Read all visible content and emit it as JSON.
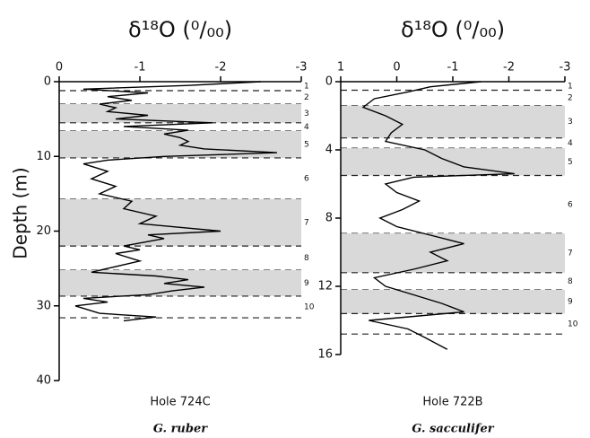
{
  "chart_data": [
    {
      "type": "line",
      "title": "δ¹⁸O (⁰/₀₀)",
      "ylabel": "Depth (m)",
      "subtitle": "Hole 724C",
      "caption": "G. ruber",
      "color": "#000000",
      "band_color": "#d9d9d9",
      "xlim": [
        0,
        -3
      ],
      "xticks": [
        0,
        -1,
        -2,
        -3
      ],
      "ylim": [
        0,
        40
      ],
      "yticks": [
        0,
        10,
        20,
        30,
        40
      ],
      "depth": [
        0,
        0.5,
        1,
        1.5,
        2,
        2.5,
        3,
        3.5,
        4,
        4.5,
        5,
        5.5,
        6,
        6.5,
        7,
        7.5,
        8,
        8.5,
        9,
        9.5,
        10,
        10.5,
        11,
        12,
        13,
        14,
        15,
        16,
        17,
        18,
        19,
        20,
        20.5,
        21,
        22,
        22.5,
        23,
        24,
        25,
        25.5,
        26,
        26.5,
        27,
        27.5,
        28,
        28.5,
        29,
        29.5,
        30,
        31,
        31.5,
        32
      ],
      "values": [
        -2.5,
        -1.6,
        -0.3,
        -1.1,
        -0.6,
        -0.9,
        -0.5,
        -0.7,
        -0.6,
        -1.1,
        -0.7,
        -1.9,
        -0.8,
        -1.6,
        -1.3,
        -1.5,
        -1.6,
        -1.5,
        -1.8,
        -2.7,
        -1.3,
        -0.6,
        -0.3,
        -0.6,
        -0.4,
        -0.7,
        -0.5,
        -0.9,
        -0.8,
        -1.2,
        -1.0,
        -2.0,
        -1.1,
        -1.3,
        -0.8,
        -1.0,
        -0.7,
        -1.0,
        -0.6,
        -0.4,
        -1.2,
        -1.6,
        -1.3,
        -1.8,
        -1.4,
        -1.1,
        -0.3,
        -0.6,
        -0.2,
        -0.5,
        -1.2,
        -0.8
      ],
      "zones": [
        {
          "label": "1",
          "top": 0,
          "bottom": 1.2,
          "shaded": false
        },
        {
          "label": "2",
          "top": 1.2,
          "bottom": 3,
          "shaded": false
        },
        {
          "label": "3",
          "top": 3,
          "bottom": 5.5,
          "shaded": true
        },
        {
          "label": "4",
          "top": 5.5,
          "bottom": 6.6,
          "shaded": false
        },
        {
          "label": "5",
          "top": 6.6,
          "bottom": 10.2,
          "shaded": true
        },
        {
          "label": "6",
          "top": 10.2,
          "bottom": 15.7,
          "shaded": false
        },
        {
          "label": "7",
          "top": 15.7,
          "bottom": 22,
          "shaded": true
        },
        {
          "label": "8",
          "top": 22,
          "bottom": 25.2,
          "shaded": false
        },
        {
          "label": "9",
          "top": 25.2,
          "bottom": 28.7,
          "shaded": true
        },
        {
          "label": "10",
          "top": 28.7,
          "bottom": 31.6,
          "shaded": false
        }
      ]
    },
    {
      "type": "line",
      "title": "δ¹⁸O (⁰/₀₀)",
      "subtitle": "Hole 722B",
      "caption": "G. sacculifer",
      "color": "#000000",
      "band_color": "#d9d9d9",
      "xlim": [
        1,
        -3
      ],
      "xticks": [
        1,
        0,
        -1,
        -2,
        -3
      ],
      "ylim": [
        0,
        16
      ],
      "yticks": [
        0,
        4,
        8,
        12,
        16
      ],
      "depth": [
        0,
        0.3,
        0.6,
        1,
        1.5,
        2,
        2.5,
        3,
        3.5,
        4,
        4.5,
        5,
        5.4,
        5.6,
        6,
        6.5,
        7,
        7.5,
        8,
        8.5,
        9,
        9.5,
        10,
        10.5,
        11,
        11.5,
        12,
        12.5,
        13,
        13.5,
        14,
        14.5,
        15,
        15.7
      ],
      "values": [
        -1.5,
        -0.6,
        -0.2,
        0.4,
        0.6,
        0.2,
        -0.1,
        0.1,
        0.2,
        -0.5,
        -0.8,
        -1.2,
        -2.1,
        -0.3,
        0.2,
        0.0,
        -0.4,
        -0.1,
        0.3,
        0.0,
        -0.6,
        -1.2,
        -0.6,
        -0.9,
        -0.3,
        0.4,
        0.2,
        -0.3,
        -0.8,
        -1.2,
        0.5,
        -0.2,
        -0.5,
        -0.9
      ],
      "zones": [
        {
          "label": "1",
          "top": 0,
          "bottom": 0.5,
          "shaded": false
        },
        {
          "label": "2",
          "top": 0.5,
          "bottom": 1.4,
          "shaded": false
        },
        {
          "label": "3",
          "top": 1.4,
          "bottom": 3.3,
          "shaded": true
        },
        {
          "label": "4",
          "top": 3.3,
          "bottom": 3.9,
          "shaded": false
        },
        {
          "label": "5",
          "top": 3.9,
          "bottom": 5.5,
          "shaded": true
        },
        {
          "label": "6",
          "top": 5.5,
          "bottom": 8.9,
          "shaded": false
        },
        {
          "label": "7",
          "top": 8.9,
          "bottom": 11.2,
          "shaded": true
        },
        {
          "label": "8",
          "top": 11.2,
          "bottom": 12.2,
          "shaded": false
        },
        {
          "label": "9",
          "top": 12.2,
          "bottom": 13.6,
          "shaded": true
        },
        {
          "label": "10",
          "top": 13.6,
          "bottom": 14.8,
          "shaded": false
        }
      ]
    }
  ]
}
